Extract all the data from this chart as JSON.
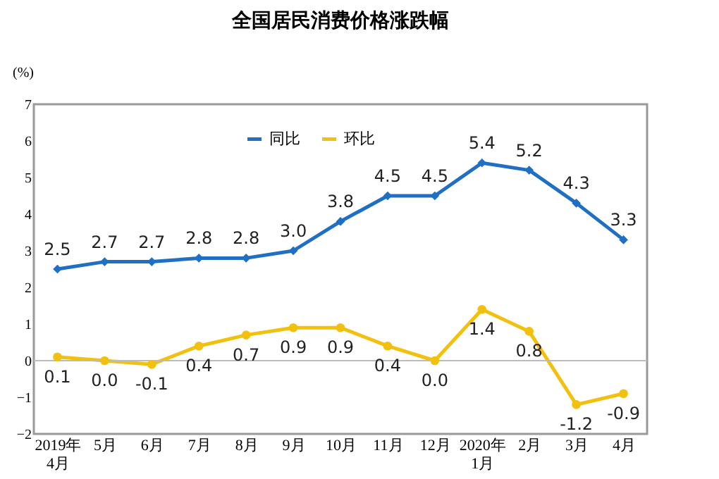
{
  "chart_data": {
    "type": "line",
    "title": "全国居民消费价格涨跌幅",
    "ylabel": "(%)",
    "categories": [
      "2019年\n4月",
      "5月",
      "6月",
      "7月",
      "8月",
      "9月",
      "10月",
      "11月",
      "12月",
      "2020年\n1月",
      "2月",
      "3月",
      "4月"
    ],
    "series": [
      {
        "name": "同比",
        "color": "#1f6fc5",
        "marker": "diamond",
        "values": [
          2.5,
          2.7,
          2.7,
          2.8,
          2.8,
          3.0,
          3.8,
          4.5,
          4.5,
          5.4,
          5.2,
          4.3,
          3.3
        ],
        "value_labels": [
          "2.5",
          "2.7",
          "2.7",
          "2.8",
          "2.8",
          "3.0",
          "3.8",
          "4.5",
          "4.5",
          "5.4",
          "5.2",
          "4.3",
          "3.3"
        ]
      },
      {
        "name": "环比",
        "color": "#f2c10f",
        "marker": "circle",
        "values": [
          0.1,
          0.0,
          -0.1,
          0.4,
          0.7,
          0.9,
          0.9,
          0.4,
          0.0,
          1.4,
          0.8,
          -1.2,
          -0.9
        ],
        "value_labels": [
          "0.1",
          "0.0",
          "-0.1",
          "0.4",
          "0.7",
          "0.9",
          "0.9",
          "0.4",
          "0.0",
          "1.4",
          "0.8",
          "-1.2",
          "-0.9"
        ]
      }
    ],
    "ylim": [
      -2,
      7
    ],
    "yticks": [
      -2,
      -1,
      0,
      1,
      2,
      3,
      4,
      5,
      6,
      7
    ],
    "ref_lines": [
      {
        "axis": "y",
        "value": 0,
        "color": "#bbbbbb"
      }
    ],
    "grid": false,
    "legend": "top",
    "line_style": "solid"
  }
}
